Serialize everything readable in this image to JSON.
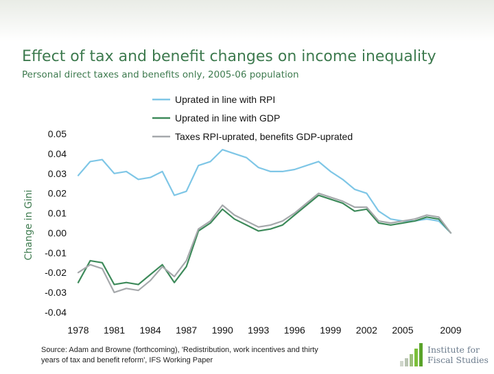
{
  "slide": {
    "title": "Effect of tax and benefit changes on income inequality",
    "subtitle": "Personal direct taxes and benefits only, 2005-06 population",
    "source_line1": "Source: Adam and Browne (forthcoming), 'Redistribution, work incentives and thirty",
    "source_line2": "years of tax and benefit reform', IFS Working Paper",
    "logo_line1": "Institute for",
    "logo_line2": "Fiscal Studies"
  },
  "colors": {
    "title": "#3d7a4e",
    "rpi": "#7ec6e6",
    "gdp": "#3d8a5a",
    "mixed": "#a5a8ab",
    "logo_green": "#7bbf3a"
  },
  "chart_data": {
    "type": "line",
    "ylabel": "Change in Gini",
    "xlabel": "",
    "ylim": [
      -0.04,
      0.05
    ],
    "xlim": [
      1978,
      2009
    ],
    "yticks": [
      "0.05",
      "0.04",
      "0.03",
      "0.02",
      "0.01",
      "0.00",
      "-0.01",
      "-0.02",
      "-0.03",
      "-0.04"
    ],
    "xticks": [
      "1978",
      "1981",
      "1984",
      "1987",
      "1990",
      "1993",
      "1996",
      "1999",
      "2002",
      "2005",
      "2009"
    ],
    "legend_position": "top",
    "x": [
      1978,
      1979,
      1980,
      1981,
      1982,
      1983,
      1984,
      1985,
      1986,
      1987,
      1988,
      1989,
      1990,
      1991,
      1992,
      1993,
      1994,
      1995,
      1996,
      1997,
      1998,
      1999,
      2000,
      2001,
      2002,
      2003,
      2004,
      2005,
      2006,
      2007,
      2008,
      2009
    ],
    "series": [
      {
        "name": "Uprated in line with RPI",
        "color": "#7ec6e6",
        "values": [
          0.029,
          0.036,
          0.037,
          0.03,
          0.031,
          0.027,
          0.028,
          0.031,
          0.019,
          0.021,
          0.034,
          0.036,
          0.042,
          0.04,
          0.038,
          0.033,
          0.031,
          0.031,
          0.032,
          0.034,
          0.036,
          0.031,
          0.027,
          0.022,
          0.02,
          0.011,
          0.007,
          0.006,
          0.006,
          0.007,
          0.006,
          0.0
        ]
      },
      {
        "name": "Uprated in line with GDP",
        "color": "#3d8a5a",
        "values": [
          -0.025,
          -0.014,
          -0.015,
          -0.026,
          -0.025,
          -0.026,
          -0.021,
          -0.016,
          -0.025,
          -0.017,
          0.001,
          0.005,
          0.012,
          0.007,
          0.004,
          0.001,
          0.002,
          0.004,
          0.009,
          0.014,
          0.019,
          0.017,
          0.015,
          0.011,
          0.012,
          0.005,
          0.004,
          0.005,
          0.006,
          0.008,
          0.007,
          0.0
        ]
      },
      {
        "name": "Taxes RPI-uprated, benefits GDP-uprated",
        "color": "#a5a8ab",
        "values": [
          -0.02,
          -0.016,
          -0.018,
          -0.03,
          -0.028,
          -0.029,
          -0.024,
          -0.017,
          -0.022,
          -0.014,
          0.002,
          0.006,
          0.014,
          0.009,
          0.006,
          0.003,
          0.004,
          0.006,
          0.01,
          0.015,
          0.02,
          0.018,
          0.016,
          0.013,
          0.013,
          0.006,
          0.005,
          0.006,
          0.007,
          0.009,
          0.008,
          0.0
        ]
      }
    ]
  }
}
